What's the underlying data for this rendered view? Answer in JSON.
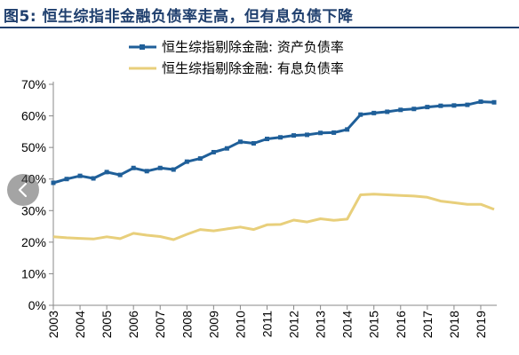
{
  "title": "图5: 恒生综指非金融负债率走高，但有息负债下降",
  "colors": {
    "series1": "#1f5f99",
    "series2": "#e8cf7b",
    "title": "#1f3f6e",
    "grid": "#dddddd"
  },
  "navigation": {
    "prev_icon": "chevron-left-icon"
  },
  "chart_data": {
    "type": "line",
    "title": "图5: 恒生综指非金融负债率走高，但有息负债下降",
    "xlabel": "",
    "ylabel": "",
    "ylim": [
      0,
      70
    ],
    "xlim": [
      2003,
      2019.6
    ],
    "yticks": [
      "0%",
      "10%",
      "20%",
      "30%",
      "40%",
      "50%",
      "60%",
      "70%"
    ],
    "xticks": [
      "2003",
      "2004",
      "2005",
      "2006",
      "2007",
      "2008",
      "2009",
      "2010",
      "2011",
      "2012",
      "2013",
      "2014",
      "2015",
      "2016",
      "2017",
      "2018",
      "2019"
    ],
    "legend_position": "top-center",
    "grid": false,
    "series": [
      {
        "name": "恒生综指剔除金融: 资产负债率",
        "color": "#1f5f99",
        "marker": "square",
        "x": [
          2003.0,
          2003.5,
          2004.0,
          2004.5,
          2005.0,
          2005.5,
          2006.0,
          2006.5,
          2007.0,
          2007.5,
          2008.0,
          2008.5,
          2009.0,
          2009.5,
          2010.0,
          2010.5,
          2011.0,
          2011.5,
          2012.0,
          2012.5,
          2013.0,
          2013.5,
          2014.0,
          2014.5,
          2015.0,
          2015.5,
          2016.0,
          2016.5,
          2017.0,
          2017.5,
          2018.0,
          2018.5,
          2019.0,
          2019.5
        ],
        "values": [
          38.8,
          40.0,
          41.0,
          40.2,
          42.2,
          41.3,
          43.5,
          42.5,
          43.5,
          43.0,
          45.5,
          46.5,
          48.5,
          49.7,
          51.8,
          51.3,
          52.7,
          53.2,
          53.8,
          54.0,
          54.6,
          54.7,
          55.7,
          60.4,
          60.9,
          61.3,
          61.9,
          62.2,
          62.8,
          63.2,
          63.3,
          63.5,
          64.5,
          64.3
        ]
      },
      {
        "name": "恒生综指剔除金融: 有息负债率",
        "color": "#e8cf7b",
        "marker": "none",
        "x": [
          2003.0,
          2003.5,
          2004.0,
          2004.5,
          2005.0,
          2005.5,
          2006.0,
          2006.5,
          2007.0,
          2007.5,
          2008.0,
          2008.5,
          2009.0,
          2009.5,
          2010.0,
          2010.5,
          2011.0,
          2011.5,
          2012.0,
          2012.5,
          2013.0,
          2013.5,
          2014.0,
          2014.5,
          2015.0,
          2015.5,
          2016.0,
          2016.5,
          2017.0,
          2017.5,
          2018.0,
          2018.5,
          2019.0,
          2019.5
        ],
        "values": [
          21.7,
          21.4,
          21.2,
          21.0,
          21.7,
          21.1,
          22.8,
          22.2,
          21.8,
          20.8,
          22.5,
          24.0,
          23.6,
          24.2,
          24.8,
          24.0,
          25.5,
          25.6,
          27.0,
          26.4,
          27.4,
          26.9,
          27.3,
          35.0,
          35.2,
          35.0,
          34.8,
          34.6,
          34.2,
          33.0,
          32.5,
          32.0,
          32.0,
          30.4
        ]
      }
    ]
  }
}
